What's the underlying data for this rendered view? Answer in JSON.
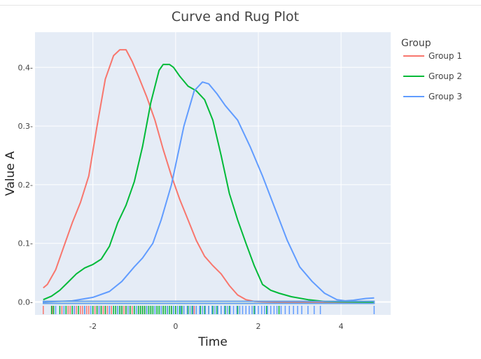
{
  "chart_data": {
    "type": "line",
    "title": "Curve and Rug Plot",
    "xlabel": "Time",
    "ylabel": "Value A",
    "xlim": [
      -3.4,
      5.2
    ],
    "ylim": [
      -0.022,
      0.46
    ],
    "xticks": [
      -2,
      0,
      2,
      4
    ],
    "xtick_labels": [
      "-2",
      "0",
      "2",
      "4"
    ],
    "yticks": [
      0,
      0.1,
      0.2,
      0.3,
      0.4
    ],
    "ytick_labels": [
      "0.0-",
      "0.1-",
      "0.2-",
      "0.3-",
      "0.4-"
    ],
    "grid": true,
    "legend": {
      "title": "Group",
      "position": "top-right"
    },
    "series": [
      {
        "name": "Group 1",
        "color": "#F8766D",
        "x": [
          -3.2,
          -3.1,
          -2.9,
          -2.7,
          -2.5,
          -2.3,
          -2.1,
          -1.9,
          -1.7,
          -1.5,
          -1.35,
          -1.2,
          -1.05,
          -0.9,
          -0.7,
          -0.5,
          -0.3,
          -0.1,
          0.1,
          0.3,
          0.5,
          0.7,
          0.9,
          1.1,
          1.3,
          1.5,
          1.7,
          1.9,
          2.1,
          2.4,
          2.8,
          3.2,
          4.0,
          4.8
        ],
        "y": [
          0.024,
          0.03,
          0.055,
          0.095,
          0.135,
          0.17,
          0.215,
          0.3,
          0.38,
          0.42,
          0.43,
          0.43,
          0.41,
          0.385,
          0.35,
          0.31,
          0.26,
          0.215,
          0.175,
          0.14,
          0.105,
          0.078,
          0.062,
          0.048,
          0.028,
          0.012,
          0.004,
          0.001,
          0.0003,
          0.0001,
          0,
          0,
          0,
          0
        ]
      },
      {
        "name": "Group 2",
        "color": "#00BA38",
        "x": [
          -3.2,
          -3.0,
          -2.8,
          -2.6,
          -2.4,
          -2.2,
          -2.0,
          -1.8,
          -1.6,
          -1.4,
          -1.2,
          -1.0,
          -0.8,
          -0.6,
          -0.4,
          -0.3,
          -0.15,
          -0.05,
          0.1,
          0.3,
          0.5,
          0.7,
          0.9,
          1.1,
          1.3,
          1.5,
          1.7,
          1.9,
          2.1,
          2.3,
          2.5,
          2.8,
          3.2,
          3.6,
          4.0,
          4.8
        ],
        "y": [
          0.004,
          0.01,
          0.02,
          0.034,
          0.048,
          0.058,
          0.064,
          0.073,
          0.095,
          0.135,
          0.165,
          0.205,
          0.265,
          0.34,
          0.395,
          0.405,
          0.405,
          0.4,
          0.385,
          0.368,
          0.36,
          0.345,
          0.31,
          0.25,
          0.185,
          0.14,
          0.1,
          0.062,
          0.03,
          0.02,
          0.015,
          0.009,
          0.004,
          0.001,
          0.0005,
          0
        ]
      },
      {
        "name": "Group 3",
        "color": "#619CFF",
        "x": [
          -3.2,
          -2.5,
          -2.0,
          -1.6,
          -1.3,
          -1.0,
          -0.8,
          -0.55,
          -0.35,
          -0.1,
          0.2,
          0.45,
          0.65,
          0.8,
          1.0,
          1.2,
          1.5,
          1.8,
          2.1,
          2.4,
          2.7,
          3.0,
          3.3,
          3.6,
          3.9,
          4.1,
          4.3,
          4.6,
          4.8
        ],
        "y": [
          0,
          0.002,
          0.008,
          0.018,
          0.035,
          0.06,
          0.075,
          0.1,
          0.14,
          0.2,
          0.3,
          0.36,
          0.375,
          0.372,
          0.355,
          0.335,
          0.31,
          0.265,
          0.215,
          0.16,
          0.105,
          0.06,
          0.035,
          0.015,
          0.004,
          0.002,
          0.003,
          0.006,
          0.007
        ]
      }
    ],
    "rug": [
      {
        "name": "Group 1",
        "color": "#F8766D",
        "x": [
          -3.2,
          -2.98,
          -2.75,
          -2.6,
          -2.55,
          -2.45,
          -2.4,
          -2.3,
          -2.25,
          -2.15,
          -2.1,
          -2.05,
          -1.95,
          -1.9,
          -1.85,
          -1.8,
          -1.75,
          -1.7,
          -1.65,
          -1.6,
          -1.55,
          -1.5,
          -1.45,
          -1.4,
          -1.35,
          -1.3,
          -1.25,
          -1.2,
          -1.15,
          -1.1,
          -1.05,
          -1.0,
          -0.95,
          -0.9,
          -0.85,
          -0.8,
          -0.75,
          -0.7,
          -0.6,
          -0.5,
          -0.4,
          -0.3,
          -0.2,
          -0.1,
          0.0,
          0.1,
          0.2,
          0.3,
          0.45,
          0.6,
          0.8
        ]
      },
      {
        "name": "Group 2",
        "color": "#00BA38",
        "x": [
          -3.0,
          -2.95,
          -2.8,
          -2.65,
          -2.5,
          -2.35,
          -2.2,
          -2.0,
          -1.9,
          -1.8,
          -1.7,
          -1.6,
          -1.5,
          -1.45,
          -1.4,
          -1.35,
          -1.3,
          -1.2,
          -1.1,
          -1.0,
          -0.95,
          -0.9,
          -0.85,
          -0.8,
          -0.75,
          -0.7,
          -0.65,
          -0.6,
          -0.55,
          -0.5,
          -0.45,
          -0.4,
          -0.35,
          -0.3,
          -0.25,
          -0.2,
          -0.15,
          -0.1,
          -0.05,
          0.0,
          0.05,
          0.1,
          0.15,
          0.2,
          0.3,
          0.4,
          0.5,
          0.6,
          0.7,
          0.8,
          0.9,
          1.0,
          1.1,
          1.2,
          1.3,
          1.5,
          1.7,
          1.9,
          2.2,
          2.5
        ]
      },
      {
        "name": "Group 3",
        "color": "#619CFF",
        "x": [
          -2.9,
          -2.7,
          -2.45,
          -2.2,
          -2.05,
          -1.85,
          -1.6,
          -1.4,
          -1.15,
          -0.95,
          -0.7,
          -0.5,
          -0.35,
          -0.2,
          -0.05,
          0.05,
          0.12,
          0.2,
          0.28,
          0.35,
          0.42,
          0.5,
          0.58,
          0.65,
          0.72,
          0.8,
          0.88,
          0.95,
          1.02,
          1.1,
          1.18,
          1.25,
          1.32,
          1.4,
          1.48,
          1.55,
          1.62,
          1.7,
          1.78,
          1.85,
          1.92,
          2.0,
          2.08,
          2.15,
          2.22,
          2.3,
          2.38,
          2.45,
          2.55,
          2.65,
          2.75,
          2.85,
          2.95,
          3.05,
          3.2,
          3.35,
          3.5,
          4.8
        ]
      }
    ]
  }
}
